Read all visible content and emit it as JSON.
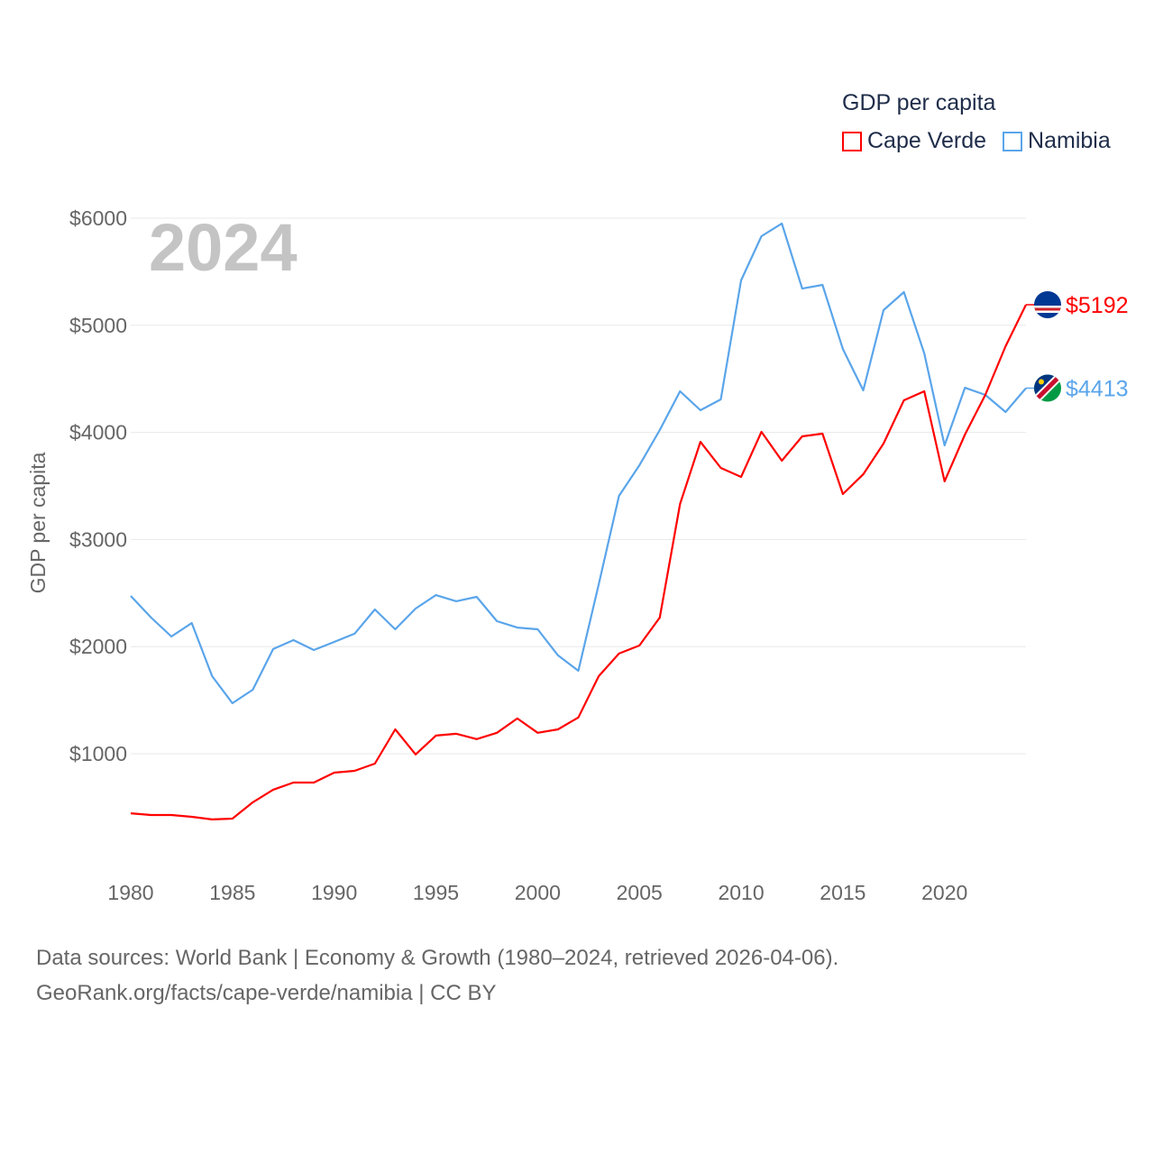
{
  "chart_data": {
    "type": "line",
    "title": "GDP per capita",
    "year_label": "2024",
    "ylabel": "GDP per capita",
    "xlabel": "",
    "xlim": [
      1980,
      2024
    ],
    "ylim": [
      0,
      6000
    ],
    "x_ticks": [
      "1980",
      "1985",
      "1990",
      "1995",
      "2000",
      "2005",
      "2010",
      "2015",
      "2020"
    ],
    "y_ticks": [
      {
        "value": 1000,
        "label": "$1000"
      },
      {
        "value": 2000,
        "label": "$2000"
      },
      {
        "value": 3000,
        "label": "$3000"
      },
      {
        "value": 4000,
        "label": "$4000"
      },
      {
        "value": 5000,
        "label": "$5000"
      },
      {
        "value": 6000,
        "label": "$6000"
      }
    ],
    "grid": true,
    "legend_position": "top-right",
    "x": [
      1980,
      1981,
      1982,
      1983,
      1984,
      1985,
      1986,
      1987,
      1988,
      1989,
      1990,
      1991,
      1992,
      1993,
      1994,
      1995,
      1996,
      1997,
      1998,
      1999,
      2000,
      2001,
      2002,
      2003,
      2004,
      2005,
      2006,
      2007,
      2008,
      2009,
      2010,
      2011,
      2012,
      2013,
      2014,
      2015,
      2016,
      2017,
      2018,
      2019,
      2020,
      2021,
      2022,
      2023,
      2024
    ],
    "series": [
      {
        "name": "Cape Verde",
        "color": "#ff0000",
        "end_label": "$5192",
        "flag": "cape-verde",
        "values": [
          444,
          428,
          428,
          411,
          386,
          394,
          546,
          664,
          731,
          731,
          823,
          840,
          907,
          1227,
          993,
          1169,
          1186,
          1136,
          1195,
          1329,
          1195,
          1227,
          1338,
          1724,
          1935,
          2010,
          2271,
          3332,
          3912,
          3668,
          3584,
          4005,
          3736,
          3963,
          3988,
          3424,
          3609,
          3896,
          4300,
          4384,
          3543,
          3980,
          4350,
          4805,
          5192
        ]
      },
      {
        "name": "Namibia",
        "color": "#5aa5ea",
        "end_label": "$4413",
        "flag": "namibia",
        "values": [
          2473,
          2271,
          2094,
          2220,
          1724,
          1471,
          1598,
          1977,
          2061,
          1968,
          2044,
          2120,
          2347,
          2162,
          2355,
          2481,
          2423,
          2465,
          2237,
          2178,
          2162,
          1918,
          1774,
          2582,
          3407,
          3693,
          4022,
          4384,
          4207,
          4308,
          5419,
          5832,
          5950,
          5343,
          5377,
          4779,
          4392,
          5141,
          5310,
          4737,
          3879,
          4417,
          4350,
          4190,
          4413
        ]
      }
    ]
  },
  "footer": {
    "line1": "Data sources: World Bank | Economy & Growth (1980–2024, retrieved 2026-04-06).",
    "line2": "GeoRank.org/facts/cape-verde/namibia | CC BY"
  }
}
